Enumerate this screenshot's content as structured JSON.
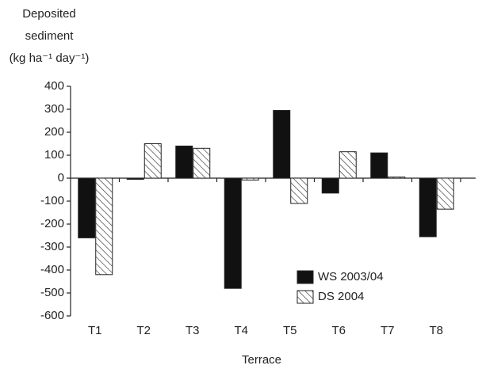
{
  "chart_data": {
    "type": "bar",
    "y_label": [
      "Deposited",
      "sediment",
      "(kg ha⁻¹ day⁻¹)"
    ],
    "x_label": "Terrace",
    "categories": [
      "T1",
      "T2",
      "T3",
      "T4",
      "T5",
      "T6",
      "T7",
      "T8"
    ],
    "series": [
      {
        "name": "WS 2003/04",
        "color": "#111111",
        "values": [
          -260,
          -5,
          140,
          -480,
          295,
          -65,
          110,
          -255
        ]
      },
      {
        "name": "DS 2004",
        "color": "#ffffff",
        "hatch": "diagonal",
        "values": [
          -420,
          150,
          130,
          -8,
          -110,
          115,
          5,
          -135
        ]
      }
    ],
    "ylim": [
      -600,
      400
    ],
    "yticks": [
      -600,
      -500,
      -400,
      -300,
      -200,
      -100,
      0,
      100,
      200,
      300,
      400
    ],
    "legend": "lower right"
  }
}
